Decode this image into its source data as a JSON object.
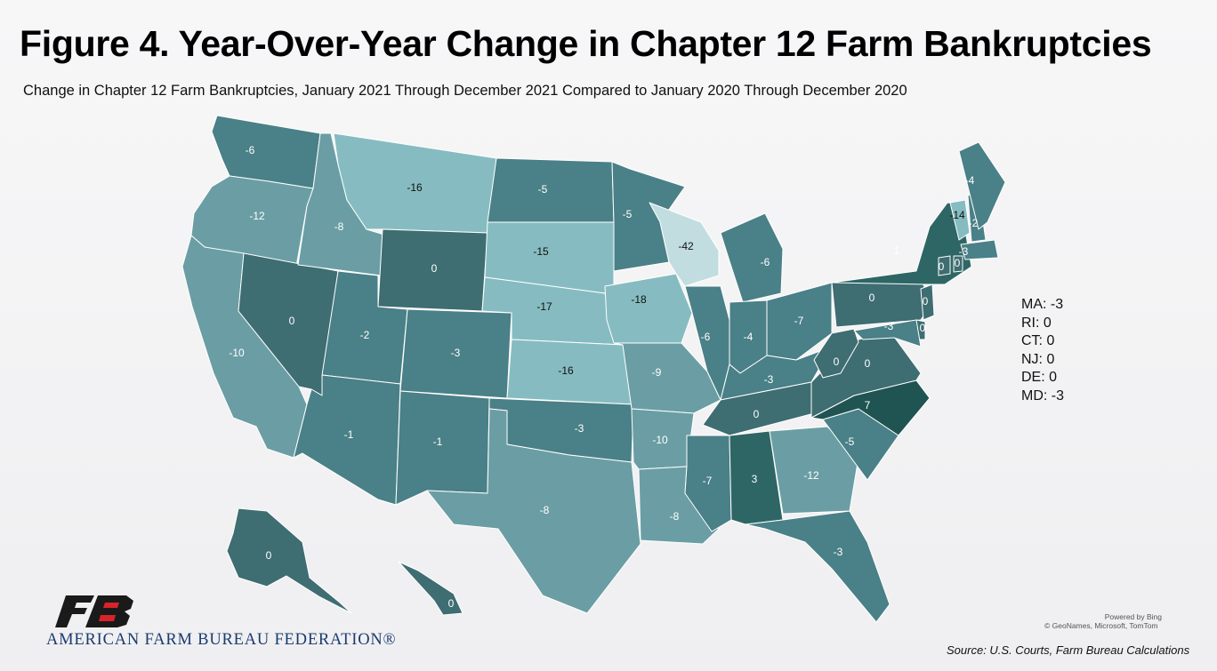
{
  "title": "Figure 4. Year-Over-Year Change in Chapter 12 Farm Bankruptcies",
  "subtitle": "Change in Chapter 12 Farm Bankruptcies, January 2021 Through December 2021 Compared to January 2020 Through December 2020",
  "colors": {
    "max_positive": "#1f5452",
    "positive": "#2e6665",
    "zero": "#3e6d72",
    "neg_small": "#4a8087",
    "neg_mid": "#6a9ea4",
    "neg_large": "#86bcc1",
    "neg_max": "#c1dde0"
  },
  "map_data": {
    "type": "choropleth",
    "metric": "change in Chapter 12 farm bankruptcies",
    "states": [
      {
        "code": "WA",
        "value": "-6"
      },
      {
        "code": "OR",
        "value": "-12"
      },
      {
        "code": "CA",
        "value": "-10"
      },
      {
        "code": "NV",
        "value": "0"
      },
      {
        "code": "ID",
        "value": "-8"
      },
      {
        "code": "MT",
        "value": "-16"
      },
      {
        "code": "WY",
        "value": "0"
      },
      {
        "code": "UT",
        "value": "-2"
      },
      {
        "code": "AZ",
        "value": "-1"
      },
      {
        "code": "CO",
        "value": "-3"
      },
      {
        "code": "NM",
        "value": "-1"
      },
      {
        "code": "ND",
        "value": "-5"
      },
      {
        "code": "SD",
        "value": "-15"
      },
      {
        "code": "NE",
        "value": "-17"
      },
      {
        "code": "KS",
        "value": "-16"
      },
      {
        "code": "OK",
        "value": "-3"
      },
      {
        "code": "TX",
        "value": "-8"
      },
      {
        "code": "MN",
        "value": "-5"
      },
      {
        "code": "IA",
        "value": "-18"
      },
      {
        "code": "MO",
        "value": "-9"
      },
      {
        "code": "AR",
        "value": "-10"
      },
      {
        "code": "LA",
        "value": "-8"
      },
      {
        "code": "WI",
        "value": "-42"
      },
      {
        "code": "IL",
        "value": "-6"
      },
      {
        "code": "MI",
        "value": "-6"
      },
      {
        "code": "IN",
        "value": "-4"
      },
      {
        "code": "OH",
        "value": "-7"
      },
      {
        "code": "KY",
        "value": "-3"
      },
      {
        "code": "TN",
        "value": "0"
      },
      {
        "code": "MS",
        "value": "-7"
      },
      {
        "code": "AL",
        "value": "3"
      },
      {
        "code": "GA",
        "value": "-12"
      },
      {
        "code": "FL",
        "value": "-3"
      },
      {
        "code": "SC",
        "value": "-5"
      },
      {
        "code": "NC",
        "value": "7"
      },
      {
        "code": "VA",
        "value": "0"
      },
      {
        "code": "WV",
        "value": "0"
      },
      {
        "code": "PA",
        "value": "0"
      },
      {
        "code": "NY",
        "value": "1"
      },
      {
        "code": "VT",
        "value": "-14"
      },
      {
        "code": "NH",
        "value": "-2"
      },
      {
        "code": "ME",
        "value": "-4"
      },
      {
        "code": "MA",
        "value": "-3"
      },
      {
        "code": "CT",
        "value": "0"
      },
      {
        "code": "RI",
        "value": "0"
      },
      {
        "code": "NJ",
        "value": "0"
      },
      {
        "code": "DE",
        "value": "0"
      },
      {
        "code": "MD",
        "value": "-3"
      },
      {
        "code": "AK",
        "value": "0"
      },
      {
        "code": "HI",
        "value": "0"
      }
    ]
  },
  "side_labels": [
    "MA: -3",
    "RI: 0",
    "CT: 0",
    "NJ: 0",
    "DE: 0",
    "MD: -3"
  ],
  "attribution": {
    "powered": "Powered by Bing",
    "copyright": "© GeoNames, Microsoft, TomTom"
  },
  "source": "Source: U.S. Courts, Farm Bureau Calculations",
  "logo": {
    "text": "AMERICAN FARM BUREAU FEDERATION®"
  }
}
